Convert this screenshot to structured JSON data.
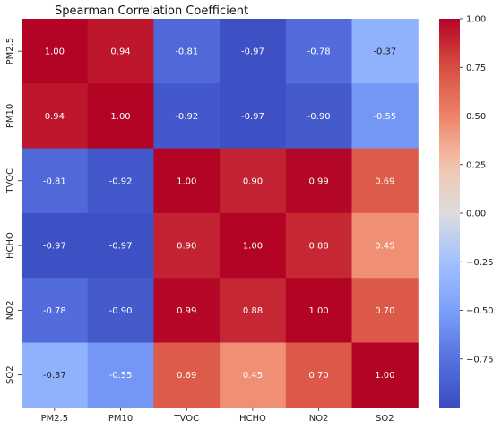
{
  "chart_data": {
    "type": "heatmap",
    "title": "Spearman Correlation Coefficient",
    "x_labels": [
      "PM2.5",
      "PM10",
      "TVOC",
      "HCHO",
      "NO2",
      "SO2"
    ],
    "y_labels": [
      "PM2.5",
      "PM10",
      "TVOC",
      "HCHO",
      "NO2",
      "SO2"
    ],
    "values": [
      [
        1.0,
        0.94,
        -0.81,
        -0.97,
        -0.78,
        -0.37
      ],
      [
        0.94,
        1.0,
        -0.92,
        -0.97,
        -0.9,
        -0.55
      ],
      [
        -0.81,
        -0.92,
        1.0,
        0.9,
        0.99,
        0.69
      ],
      [
        -0.97,
        -0.97,
        0.9,
        1.0,
        0.88,
        0.45
      ],
      [
        -0.78,
        -0.9,
        0.99,
        0.88,
        1.0,
        0.7
      ],
      [
        -0.37,
        -0.55,
        0.69,
        0.45,
        0.7,
        1.0
      ]
    ],
    "value_labels": [
      [
        "1.00",
        "0.94",
        "-0.81",
        "-0.97",
        "-0.78",
        "-0.37"
      ],
      [
        "0.94",
        "1.00",
        "-0.92",
        "-0.97",
        "-0.90",
        "-0.55"
      ],
      [
        "-0.81",
        "-0.92",
        "1.00",
        "0.90",
        "0.99",
        "0.69"
      ],
      [
        "-0.97",
        "-0.97",
        "0.90",
        "1.00",
        "0.88",
        "0.45"
      ],
      [
        "-0.78",
        "-0.90",
        "0.99",
        "0.88",
        "1.00",
        "0.70"
      ],
      [
        "-0.37",
        "-0.55",
        "0.69",
        "0.45",
        "0.70",
        "1.00"
      ]
    ],
    "colormap": "coolwarm",
    "vmin": -1,
    "vmax": 1,
    "colorbar_ticks": [
      1.0,
      0.75,
      0.5,
      0.25,
      0.0,
      -0.25,
      -0.5,
      -0.75
    ],
    "colorbar_tick_labels": [
      "1.00",
      "0.75",
      "0.50",
      "0.25",
      "0.00",
      "−0.25",
      "−0.50",
      "−0.75"
    ],
    "colorbar_position": "right",
    "grid": false
  }
}
